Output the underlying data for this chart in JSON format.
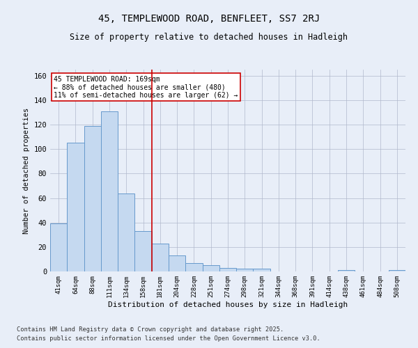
{
  "title": "45, TEMPLEWOOD ROAD, BENFLEET, SS7 2RJ",
  "subtitle": "Size of property relative to detached houses in Hadleigh",
  "xlabel": "Distribution of detached houses by size in Hadleigh",
  "ylabel": "Number of detached properties",
  "bar_color": "#c5d9f0",
  "bar_edge_color": "#6699cc",
  "background_color": "#e8eef8",
  "categories": [
    "41sqm",
    "64sqm",
    "88sqm",
    "111sqm",
    "134sqm",
    "158sqm",
    "181sqm",
    "204sqm",
    "228sqm",
    "251sqm",
    "274sqm",
    "298sqm",
    "321sqm",
    "344sqm",
    "368sqm",
    "391sqm",
    "414sqm",
    "438sqm",
    "461sqm",
    "484sqm",
    "508sqm"
  ],
  "values": [
    39,
    105,
    119,
    131,
    64,
    33,
    23,
    13,
    7,
    5,
    3,
    2,
    2,
    0,
    0,
    0,
    0,
    1,
    0,
    0,
    1
  ],
  "ylim": [
    0,
    165
  ],
  "yticks": [
    0,
    20,
    40,
    60,
    80,
    100,
    120,
    140,
    160
  ],
  "property_line_bin": 5.5,
  "annotation_text": "45 TEMPLEWOOD ROAD: 169sqm\n← 88% of detached houses are smaller (480)\n11% of semi-detached houses are larger (62) →",
  "annotation_box_color": "#ffffff",
  "annotation_box_edge": "#cc0000",
  "vline_color": "#cc0000",
  "footnote1": "Contains HM Land Registry data © Crown copyright and database right 2025.",
  "footnote2": "Contains public sector information licensed under the Open Government Licence v3.0."
}
